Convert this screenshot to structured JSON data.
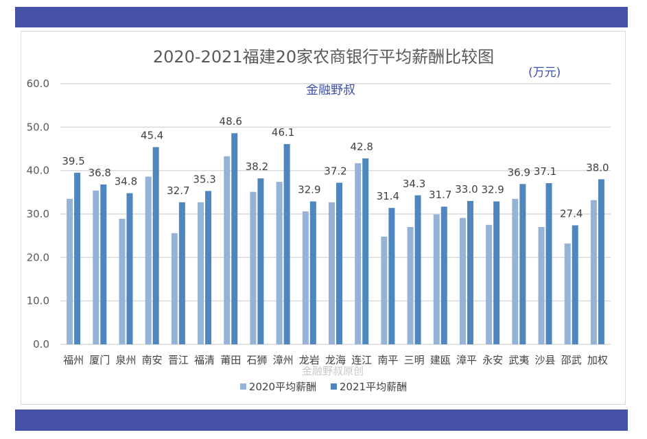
{
  "colors": {
    "band": "#4651a8",
    "s2020": "#95b3d7",
    "s2021": "#4f86bd",
    "grid": "#d9d9d9"
  },
  "unit": "(万元)",
  "subtitle": "金融野叔",
  "watermark": "金融野叔原创",
  "chart_data": {
    "type": "bar",
    "title": "2020-2021福建20家农商银行平均薪酬比较图",
    "ylim": [
      0,
      60
    ],
    "yticks": [
      "0.0",
      "10.0",
      "20.0",
      "30.0",
      "40.0",
      "50.0",
      "60.0"
    ],
    "grid": true,
    "legend": "bottom",
    "categories": [
      "福州",
      "厦门",
      "泉州",
      "南安",
      "晋江",
      "福清",
      "莆田",
      "石狮",
      "漳州",
      "龙岩",
      "龙海",
      "连江",
      "南平",
      "三明",
      "建瓯",
      "漳平",
      "永安",
      "武夷",
      "沙县",
      "邵武",
      "加权"
    ],
    "series": [
      {
        "name": "2020平均薪酬",
        "values": [
          33.5,
          35.4,
          28.9,
          38.6,
          25.6,
          32.7,
          43.3,
          35.1,
          37.4,
          30.6,
          32.7,
          41.7,
          24.8,
          27.0,
          29.9,
          29.1,
          27.5,
          33.5,
          27.0,
          23.2,
          33.2
        ]
      },
      {
        "name": "2021平均薪酬",
        "values": [
          39.5,
          36.8,
          34.8,
          45.4,
          32.7,
          35.3,
          48.6,
          38.2,
          46.1,
          32.9,
          37.2,
          42.8,
          31.4,
          34.3,
          31.7,
          33.0,
          32.9,
          36.9,
          37.1,
          27.4,
          38.0
        ],
        "labels": [
          "39.5",
          "36.8",
          "34.8",
          "45.4",
          "32.7",
          "35.3",
          "48.6",
          "38.2",
          "46.1",
          "32.9",
          "37.2",
          "42.8",
          "31.4",
          "34.3",
          "31.7",
          "33.0",
          "32.9",
          "36.9",
          "37.1",
          "27.4",
          "38.0"
        ]
      }
    ]
  }
}
